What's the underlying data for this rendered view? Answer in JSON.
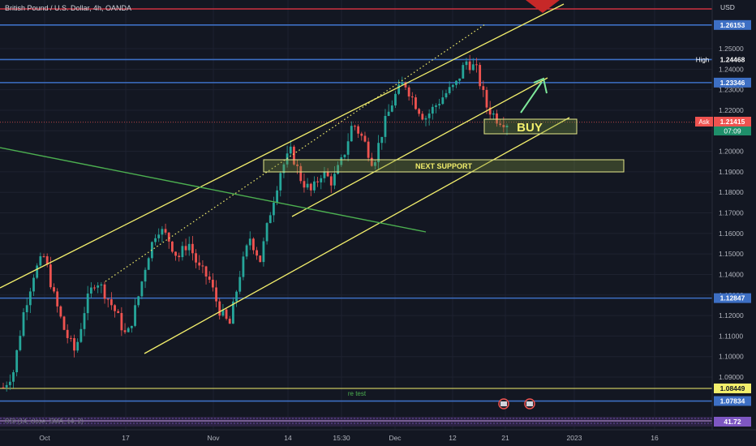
{
  "header": {
    "symbol_title": "British Pound / U.S. Dollar, 4h, OANDA",
    "currency": "USD"
  },
  "price_axis": {
    "ticks": [
      "1.25000",
      "1.24000",
      "1.23000",
      "1.22000",
      "1.21000",
      "1.20000",
      "1.19000",
      "1.18000",
      "1.17000",
      "1.16000",
      "1.15000",
      "1.14000",
      "1.13000",
      "1.12000",
      "1.11000",
      "1.10000",
      "1.09000"
    ],
    "level_labels": [
      {
        "value": "1.26153",
        "kind": "blue"
      },
      {
        "value": "1.24468",
        "kind": "dark",
        "tag": "High"
      },
      {
        "value": "1.23346",
        "kind": "blue"
      },
      {
        "value": "1.12847",
        "kind": "blue"
      },
      {
        "value": "1.08449",
        "kind": "yellow"
      },
      {
        "value": "1.07834",
        "kind": "blue"
      }
    ],
    "ask": {
      "tag": "Ask",
      "value": "1.21415",
      "countdown": "07:09"
    },
    "rsi_value": "41.72"
  },
  "time_axis": {
    "labels": [
      "Oct",
      "17",
      "Nov",
      "14",
      "15:30",
      "Dec",
      "12",
      "21",
      "2023",
      "16"
    ]
  },
  "annotations": {
    "buy": "BUY",
    "next_support": "NEXT SUPPORT",
    "retest": "re test"
  },
  "rsi_label": "RSI (14, close, SMA, 14, 2)",
  "colors": {
    "bg": "#131722",
    "up": "#26a69a",
    "down": "#ef5350",
    "level": "#3d6fc4",
    "channel": "#f3ef6c",
    "trend": "#4caf50",
    "resistance": "#f23645"
  },
  "chart_data": {
    "type": "candlestick",
    "title": "British Pound / U.S. Dollar, 4h, OANDA",
    "ylim": [
      1.0775,
      1.2675
    ],
    "x_labels": [
      "Oct",
      "17",
      "Nov",
      "14",
      "15:30",
      "Dec",
      "12",
      "21",
      "2023",
      "16"
    ],
    "price_path": [
      [
        "Oct",
        1.085
      ],
      [
        "Oct",
        1.093
      ],
      [
        "Oct",
        1.122
      ],
      [
        "Oct",
        1.141
      ],
      [
        "Oct",
        1.149
      ],
      [
        "Oct",
        1.128
      ],
      [
        "Oct",
        1.112
      ],
      [
        "Oct",
        1.102
      ],
      [
        "17",
        1.125
      ],
      [
        "17",
        1.138
      ],
      [
        "17",
        1.13
      ],
      [
        "17",
        1.121
      ],
      [
        "17",
        1.109
      ],
      [
        "17",
        1.126
      ],
      [
        "17",
        1.148
      ],
      [
        "17",
        1.163
      ],
      [
        "17",
        1.158
      ],
      [
        "17",
        1.148
      ],
      [
        "17",
        1.156
      ],
      [
        "Nov",
        1.143
      ],
      [
        "Nov",
        1.138
      ],
      [
        "Nov",
        1.123
      ],
      [
        "Nov",
        1.115
      ],
      [
        "Nov",
        1.14
      ],
      [
        "Nov",
        1.158
      ],
      [
        "Nov",
        1.147
      ],
      [
        "Nov",
        1.171
      ],
      [
        "14",
        1.191
      ],
      [
        "14",
        1.2
      ],
      [
        "14",
        1.186
      ],
      [
        "14",
        1.18
      ],
      [
        "14",
        1.19
      ],
      [
        "14",
        1.185
      ],
      [
        "15:30",
        1.196
      ],
      [
        "15:30",
        1.214
      ],
      [
        "15:30",
        1.206
      ],
      [
        "15:30",
        1.194
      ],
      [
        "15:30",
        1.212
      ],
      [
        "Dec",
        1.226
      ],
      [
        "Dec",
        1.234
      ],
      [
        "Dec",
        1.224
      ],
      [
        "Dec",
        1.216
      ],
      [
        "Dec",
        1.222
      ],
      [
        "Dec",
        1.228
      ],
      [
        "12",
        1.232
      ],
      [
        "12",
        1.244
      ],
      [
        "12",
        1.24
      ],
      [
        "12",
        1.222
      ],
      [
        "12",
        1.216
      ],
      [
        "12",
        1.214
      ]
    ],
    "horizontal_levels": [
      1.26153,
      1.24468,
      1.23346,
      1.12847,
      1.08449,
      1.07834
    ],
    "ask": 1.21415,
    "rsi": 41.72
  }
}
